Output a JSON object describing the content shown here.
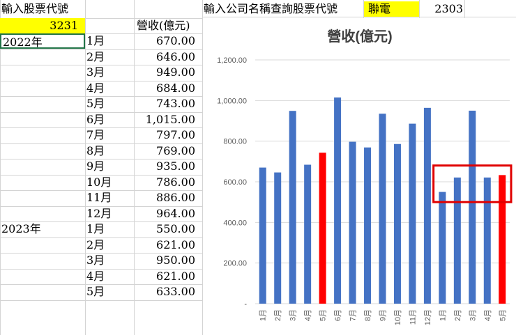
{
  "sheet": {
    "a1_label": "輸入股票代號",
    "stock_code_input": "3231",
    "col_header": "營收(億元)",
    "query_label": "輸入公司名稱查詢股票代號",
    "company_name": "聯電",
    "company_code": "2303",
    "rows": [
      {
        "year": "2022年",
        "month": "1月",
        "value": "670.00"
      },
      {
        "year": "",
        "month": "2月",
        "value": "646.00"
      },
      {
        "year": "",
        "month": "3月",
        "value": "949.00"
      },
      {
        "year": "",
        "month": "4月",
        "value": "684.00"
      },
      {
        "year": "",
        "month": "5月",
        "value": "743.00"
      },
      {
        "year": "",
        "month": "6月",
        "value": "1,015.00"
      },
      {
        "year": "",
        "month": "7月",
        "value": "797.00"
      },
      {
        "year": "",
        "month": "8月",
        "value": "769.00"
      },
      {
        "year": "",
        "month": "9月",
        "value": "935.00"
      },
      {
        "year": "",
        "month": "10月",
        "value": "786.00"
      },
      {
        "year": "",
        "month": "11月",
        "value": "886.00"
      },
      {
        "year": "",
        "month": "12月",
        "value": "964.00"
      },
      {
        "year": "2023年",
        "month": "1月",
        "value": "550.00"
      },
      {
        "year": "",
        "month": "2月",
        "value": "621.00"
      },
      {
        "year": "",
        "month": "3月",
        "value": "950.00"
      },
      {
        "year": "",
        "month": "4月",
        "value": "621.00"
      },
      {
        "year": "",
        "month": "5月",
        "value": "633.00"
      }
    ]
  },
  "colors": {
    "bar_default": "#4472c4",
    "bar_highlight": "#ff0000",
    "annotation_box": "#e00000",
    "cell_highlight": "#ffff00"
  },
  "chart_data": {
    "type": "bar",
    "title": "營收(億元)",
    "categories": [
      "1月",
      "2月",
      "3月",
      "4月",
      "5月",
      "6月",
      "7月",
      "8月",
      "9月",
      "10月",
      "11月",
      "12月",
      "1月",
      "2月",
      "3月",
      "4月",
      "5月"
    ],
    "values": [
      670,
      646,
      949,
      684,
      743,
      1015,
      797,
      769,
      935,
      786,
      886,
      964,
      550,
      621,
      950,
      621,
      633
    ],
    "highlighted_bars": [
      4,
      16
    ],
    "y_ticks": [
      "-",
      "200.00",
      "400.00",
      "600.00",
      "800.00",
      "1,000.00",
      "1,200.00"
    ],
    "ylim": [
      0,
      1200
    ],
    "grid": true,
    "legend": "none",
    "annotation": "red box around 2023 months 1月–5月, range 500–680"
  }
}
